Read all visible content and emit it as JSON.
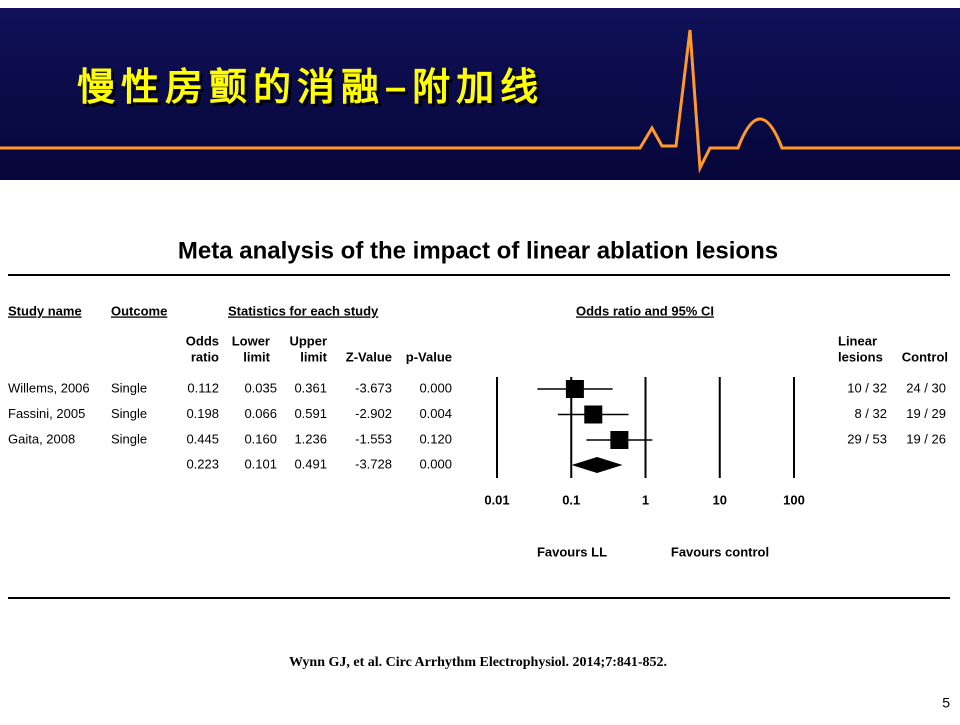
{
  "slide_title": "慢性房颤的消融–附加线",
  "citation": "Wynn GJ, et al. Circ Arrhythm Electrophysiol. 2014;7:841-852.",
  "page_number": "5",
  "chart_data": {
    "type": "forest",
    "title": "Meta analysis of the impact of linear ablation lesions",
    "headers": {
      "study": "Study name",
      "outcome": "Outcome",
      "stats": "Statistics for each study",
      "plot": "Odds ratio and 95% CI",
      "or": [
        "Odds",
        "ratio"
      ],
      "lower": [
        "Lower",
        "limit"
      ],
      "upper": [
        "Upper",
        "limit"
      ],
      "z": "Z-Value",
      "p": "p-Value",
      "ll": [
        "Linear",
        "lesions"
      ],
      "control": "Control"
    },
    "rows": [
      {
        "name": "Willems, 2006",
        "outcome": "Single",
        "or": 0.112,
        "lower": 0.035,
        "upper": 0.361,
        "z": -3.673,
        "p": 0,
        "p_label": "0.000",
        "ll": "10 / 32",
        "control": "24 / 30"
      },
      {
        "name": "Fassini, 2005",
        "outcome": "Single",
        "or": 0.198,
        "lower": 0.066,
        "upper": 0.591,
        "z": -2.902,
        "p": 0.004,
        "ll": "8 / 32",
        "control": "19 / 29"
      },
      {
        "name": "Gaita, 2008",
        "outcome": "Single",
        "or": 0.445,
        "lower": 0.16,
        "lower_label": "0.160",
        "upper": 1.236,
        "z": -1.553,
        "p": 0.12,
        "p_label": "0.120",
        "ll": "29 / 53",
        "control": "19 / 26"
      }
    ],
    "summary": {
      "or": 0.223,
      "lower": 0.101,
      "upper": 0.491,
      "z": -3.728,
      "p": 0,
      "p_label": "0.000"
    },
    "xscale": "log",
    "xlim": [
      0.01,
      100
    ],
    "xticks": [
      0.01,
      0.1,
      1,
      10,
      100
    ],
    "xlabel_left": "Favours LL",
    "xlabel_right": "Favours control",
    "color": "#000000"
  }
}
